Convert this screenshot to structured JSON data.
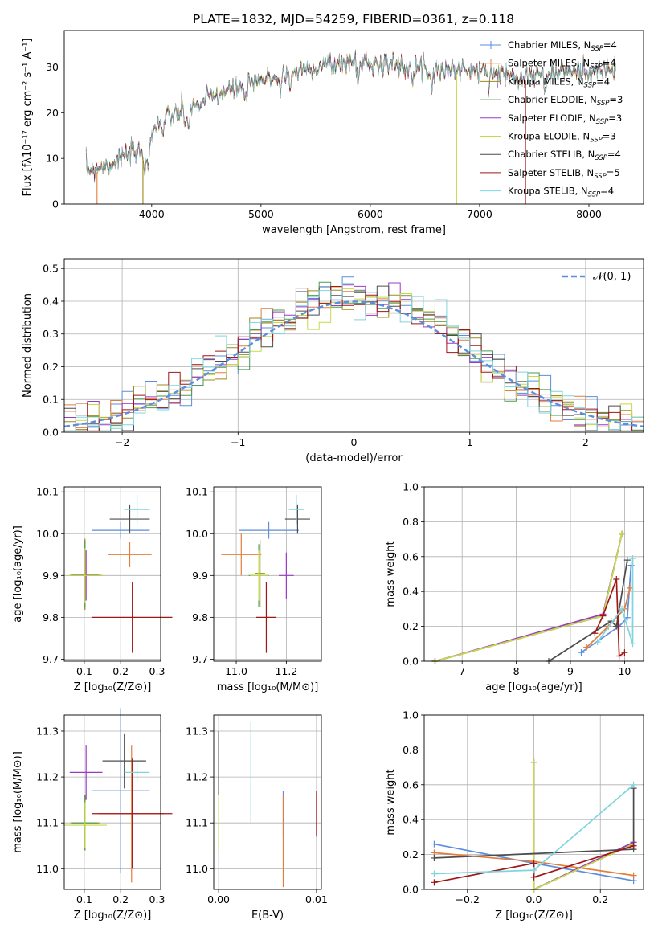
{
  "figure_title": "PLATE=1832, MJD=54259, FIBERID=0361, z=0.118",
  "models": [
    {
      "label": "Chabrier MILES, N",
      "nssp": "4",
      "color": "#5b8ede"
    },
    {
      "label": "Salpeter MILES, N",
      "nssp": "4",
      "color": "#e27d3b"
    },
    {
      "label": "Kroupa MILES, N",
      "nssp": "4",
      "color": "#9b8a1e"
    },
    {
      "label": "Chabrier ELODIE, N",
      "nssp": "3",
      "color": "#4e9a4e"
    },
    {
      "label": "Salpeter ELODIE, N",
      "nssp": "3",
      "color": "#9b3ac4"
    },
    {
      "label": "Kroupa ELODIE, N",
      "nssp": "3",
      "color": "#c8d84a"
    },
    {
      "label": "Chabrier STELIB, N",
      "nssp": "4",
      "color": "#4d4d4d"
    },
    {
      "label": "Salpeter STELIB, N",
      "nssp": "5",
      "color": "#a01616"
    },
    {
      "label": "Kroupa STELIB, N",
      "nssp": "4",
      "color": "#7fd4df"
    }
  ],
  "legend_ssp_subscript": "SSP",
  "chart_data": [
    {
      "id": "spectrum",
      "type": "line",
      "xlabel": "wavelength [Angstrom, rest frame]",
      "ylabel": "Flux [fλ10⁻¹⁷ erg cm⁻² s⁻¹ A⁻¹]",
      "xlim": [
        3200,
        8500
      ],
      "ylim": [
        0,
        38
      ],
      "xticks": [
        4000,
        5000,
        6000,
        7000,
        8000
      ],
      "yticks": [
        0,
        10,
        20,
        30
      ],
      "legend_position": "upper right",
      "continuum": {
        "x": [
          3400,
          3600,
          3800,
          3950,
          4050,
          4200,
          4400,
          4600,
          4800,
          5000,
          5200,
          5400,
          5600,
          5800,
          6000,
          6200,
          6400,
          6600,
          6800,
          7000,
          7200,
          7400,
          7600,
          7800,
          8000,
          8250
        ],
        "y": [
          7.5,
          8.5,
          11,
          11.5,
          18,
          19.5,
          21.5,
          24,
          25.5,
          27,
          28.5,
          29.5,
          30.5,
          31,
          31,
          30.5,
          30,
          29.5,
          29.5,
          29,
          28.5,
          28,
          28.5,
          29,
          29,
          29.5
        ]
      },
      "absorption_features": [
        3934,
        3969,
        4101,
        4304,
        4340,
        4861,
        5175,
        5270,
        5890,
        6563,
        7600
      ],
      "drop_lines": [
        {
          "series": 1,
          "x": 3500
        },
        {
          "series": 2,
          "x": 3920
        },
        {
          "series": 5,
          "x": 6790
        },
        {
          "series": 7,
          "x": 7420
        }
      ]
    },
    {
      "id": "residuals",
      "type": "step",
      "xlabel": "(data-model)/error",
      "ylabel": "Normed distribution",
      "xlim": [
        -2.5,
        2.5
      ],
      "ylim": [
        0,
        0.53
      ],
      "xticks": [
        -2,
        -1,
        0,
        1,
        2
      ],
      "xtick_labels": [
        "−2",
        "−1",
        "0",
        "1",
        "2"
      ],
      "yticks": [
        0.0,
        0.1,
        0.2,
        0.3,
        0.4,
        0.5
      ],
      "bin_width": 0.1,
      "gaussian_label": "𝒩(0, 1)",
      "gaussian_color": "#5b8ede",
      "legend_position": "upper right"
    },
    {
      "id": "age-Z",
      "type": "scatter",
      "xlabel": "Z [log₁₀(Z/Z⊙)]",
      "ylabel": "age  [log₁₀(age/yr)]",
      "xlim": [
        0.045,
        0.31
      ],
      "ylim": [
        9.695,
        10.112
      ],
      "xticks": [
        0.1,
        0.2,
        0.3
      ],
      "xtick_labels": [
        "0.1",
        "0.2",
        "0.3"
      ],
      "yticks": [
        9.7,
        9.8,
        9.9,
        10.0,
        10.1
      ],
      "ytick_labels": [
        "9.7",
        "9.8",
        "9.9",
        "10.0",
        "10.1"
      ],
      "points": [
        {
          "s": 0,
          "x": 0.2,
          "y": 10.008,
          "ex": 0.08,
          "ey": 0.02
        },
        {
          "s": 1,
          "x": 0.225,
          "y": 9.95,
          "ex": 0.06,
          "ey": 0.03
        },
        {
          "s": 2,
          "x": 0.102,
          "y": 9.903,
          "ex": 0.04,
          "ey": 0.085
        },
        {
          "s": 3,
          "x": 0.102,
          "y": 9.903,
          "ex": 0.035,
          "ey": 0.08
        },
        {
          "s": 4,
          "x": 0.105,
          "y": 9.9,
          "ex": 0.045,
          "ey": 0.06
        },
        {
          "s": 5,
          "x": 0.102,
          "y": 9.9,
          "ex": 0.05,
          "ey": 0.065
        },
        {
          "s": 6,
          "x": 0.225,
          "y": 10.035,
          "ex": 0.055,
          "ey": 0.035
        },
        {
          "s": 7,
          "x": 0.232,
          "y": 9.8,
          "ex": 0.11,
          "ey": 0.085
        },
        {
          "s": 8,
          "x": 0.245,
          "y": 10.058,
          "ex": 0.035,
          "ey": 0.035
        }
      ]
    },
    {
      "id": "age-mass",
      "type": "scatter",
      "xlabel": "mass [log₁₀(M/M⊙)]",
      "ylabel": "",
      "xlim": [
        10.91,
        11.34
      ],
      "ylim": [
        9.695,
        10.112
      ],
      "xticks": [
        11.0,
        11.2
      ],
      "xtick_labels": [
        "11.0",
        "11.2"
      ],
      "yticks": [
        9.7,
        9.8,
        9.9,
        10.0,
        10.1
      ],
      "ytick_labels": [
        "9.7",
        "9.8",
        "9.9",
        "10.0",
        "10.1"
      ],
      "points": [
        {
          "s": 0,
          "x": 11.13,
          "y": 10.008,
          "ex": 0.12,
          "ey": 0.02
        },
        {
          "s": 1,
          "x": 11.02,
          "y": 9.95,
          "ex": 0.08,
          "ey": 0.05
        },
        {
          "s": 2,
          "x": 11.095,
          "y": 9.905,
          "ex": 0.02,
          "ey": 0.08
        },
        {
          "s": 3,
          "x": 11.09,
          "y": 9.9,
          "ex": 0.04,
          "ey": 0.075
        },
        {
          "s": 4,
          "x": 11.2,
          "y": 9.9,
          "ex": 0.03,
          "ey": 0.055
        },
        {
          "s": 5,
          "x": 11.09,
          "y": 9.9,
          "ex": 0.035,
          "ey": 0.06
        },
        {
          "s": 6,
          "x": 11.245,
          "y": 10.035,
          "ex": 0.05,
          "ey": 0.035
        },
        {
          "s": 7,
          "x": 11.12,
          "y": 9.8,
          "ex": 0.04,
          "ey": 0.085
        },
        {
          "s": 8,
          "x": 11.24,
          "y": 10.058,
          "ex": 0.03,
          "ey": 0.035
        }
      ]
    },
    {
      "id": "weight-age",
      "type": "line",
      "xlabel": "age  [log₁₀(age/yr)]",
      "ylabel": "mass weight",
      "xlim": [
        6.3,
        10.35
      ],
      "ylim": [
        0,
        1.0
      ],
      "xticks": [
        7,
        8,
        9,
        10
      ],
      "xtick_labels": [
        "7",
        "8",
        "9",
        "10"
      ],
      "yticks": [
        0.0,
        0.2,
        0.4,
        0.6,
        0.8,
        1.0
      ],
      "ytick_labels": [
        "0.0",
        "0.2",
        "0.4",
        "0.6",
        "0.8",
        "1.0"
      ],
      "series": [
        {
          "s": 0,
          "x": [
            9.2,
            9.9,
            10.05,
            10.12
          ],
          "y": [
            0.05,
            0.2,
            0.25,
            0.55
          ]
        },
        {
          "s": 1,
          "x": [
            9.3,
            9.7,
            10.0,
            10.1
          ],
          "y": [
            0.08,
            0.2,
            0.3,
            0.42
          ]
        },
        {
          "s": 2,
          "x": [
            6.5,
            9.6,
            9.95
          ],
          "y": [
            0.0,
            0.26,
            0.73
          ]
        },
        {
          "s": 3,
          "x": [
            6.5,
            9.6,
            9.95
          ],
          "y": [
            0.0,
            0.26,
            0.73
          ]
        },
        {
          "s": 4,
          "x": [
            6.5,
            9.6,
            9.95
          ],
          "y": [
            0.0,
            0.27,
            0.73
          ]
        },
        {
          "s": 5,
          "x": [
            6.5,
            9.6,
            9.95
          ],
          "y": [
            0.0,
            0.26,
            0.73
          ]
        },
        {
          "s": 6,
          "x": [
            8.6,
            9.75,
            9.85,
            10.05
          ],
          "y": [
            0.0,
            0.23,
            0.2,
            0.58
          ]
        },
        {
          "s": 7,
          "x": [
            9.45,
            9.6,
            9.85,
            9.9,
            10.0
          ],
          "y": [
            0.16,
            0.26,
            0.47,
            0.03,
            0.05
          ]
        },
        {
          "s": 8,
          "x": [
            9.5,
            9.95,
            10.15,
            10.15
          ],
          "y": [
            0.11,
            0.3,
            0.1,
            0.59
          ]
        }
      ]
    },
    {
      "id": "mass-Z",
      "type": "scatter",
      "xlabel": "Z [log₁₀(Z/Z⊙)]",
      "ylabel": "mass [log₁₀(M/M⊙)]",
      "xlim": [
        0.045,
        0.31
      ],
      "ylim": [
        10.955,
        11.335
      ],
      "xticks": [
        0.1,
        0.2,
        0.3
      ],
      "xtick_labels": [
        "0.1",
        "0.2",
        "0.3"
      ],
      "yticks": [
        11.0,
        11.1,
        11.2,
        11.3
      ],
      "ytick_labels": [
        "11.0",
        "11.1",
        "11.2",
        "11.3"
      ],
      "points": [
        {
          "s": 0,
          "x": 0.2,
          "y": 11.17,
          "ex": 0.08,
          "ey": 0.18
        },
        {
          "s": 1,
          "x": 0.23,
          "y": 11.12,
          "ex": 0.09,
          "ey": 0.15
        },
        {
          "s": 2,
          "x": 0.102,
          "y": 11.1,
          "ex": 0.04,
          "ey": 0.06
        },
        {
          "s": 3,
          "x": 0.102,
          "y": 11.1,
          "ex": 0.035,
          "ey": 0.06
        },
        {
          "s": 4,
          "x": 0.105,
          "y": 11.21,
          "ex": 0.045,
          "ey": 0.06
        },
        {
          "s": 5,
          "x": 0.102,
          "y": 11.095,
          "ex": 0.06,
          "ey": 0.05
        },
        {
          "s": 6,
          "x": 0.21,
          "y": 11.235,
          "ex": 0.06,
          "ey": 0.06
        },
        {
          "s": 7,
          "x": 0.232,
          "y": 11.12,
          "ex": 0.11,
          "ey": 0.12
        },
        {
          "s": 8,
          "x": 0.245,
          "y": 11.21,
          "ex": 0.035,
          "ey": 0.02
        }
      ]
    },
    {
      "id": "mass-EBV",
      "type": "scatter",
      "xlabel": "E(B-V)",
      "ylabel": "",
      "xlim": [
        -0.0005,
        0.0105
      ],
      "ylim": [
        10.955,
        11.335
      ],
      "xticks": [
        0.0,
        0.01
      ],
      "xtick_labels": [
        "0.00",
        "0.01"
      ],
      "yticks": [
        11.0,
        11.1,
        11.2,
        11.3
      ],
      "ytick_labels": [
        "11.0",
        "11.1",
        "11.2",
        "11.3"
      ],
      "points": [
        {
          "s": 0,
          "x": 0.0066,
          "y": 11.12,
          "ex": 0,
          "ey": 0.05
        },
        {
          "s": 1,
          "x": 0.0066,
          "y": 11.06,
          "ex": 0,
          "ey": 0.1
        },
        {
          "s": 2,
          "x": 0.0,
          "y": 11.1,
          "ex": 0,
          "ey": 0.06
        },
        {
          "s": 3,
          "x": 0.0,
          "y": 11.1,
          "ex": 0,
          "ey": 0.06
        },
        {
          "s": 4,
          "x": 0.0,
          "y": 11.2,
          "ex": 0,
          "ey": 0.06
        },
        {
          "s": 5,
          "x": 0.0,
          "y": 11.1,
          "ex": 0,
          "ey": 0.06
        },
        {
          "s": 6,
          "x": 0.0,
          "y": 11.23,
          "ex": 0,
          "ey": 0.07
        },
        {
          "s": 7,
          "x": 0.01,
          "y": 11.12,
          "ex": 0,
          "ey": 0.05
        },
        {
          "s": 8,
          "x": 0.0033,
          "y": 11.21,
          "ex": 0,
          "ey": 0.11
        }
      ]
    },
    {
      "id": "weight-Z",
      "type": "line",
      "xlabel": "Z [log₁₀(Z/Z⊙)]",
      "ylabel": "mass weight",
      "xlim": [
        -0.33,
        0.33
      ],
      "ylim": [
        0,
        1.0
      ],
      "xticks": [
        -0.2,
        0.0,
        0.2
      ],
      "xtick_labels": [
        "−0.2",
        "0.0",
        "0.2"
      ],
      "yticks": [
        0.0,
        0.2,
        0.4,
        0.6,
        0.8,
        1.0
      ],
      "ytick_labels": [
        "0.0",
        "0.2",
        "0.4",
        "0.6",
        "0.8",
        "1.0"
      ],
      "series": [
        {
          "s": 0,
          "x": [
            -0.3,
            0.0,
            0.3
          ],
          "y": [
            0.26,
            0.15,
            0.05
          ]
        },
        {
          "s": 1,
          "x": [
            -0.3,
            0.0,
            0.3
          ],
          "y": [
            0.21,
            0.16,
            0.08
          ]
        },
        {
          "s": 2,
          "x": [
            0.0,
            0.0,
            0.3
          ],
          "y": [
            0.73,
            0.0,
            0.26
          ]
        },
        {
          "s": 3,
          "x": [
            0.0,
            0.0,
            0.3
          ],
          "y": [
            0.73,
            0.0,
            0.27
          ]
        },
        {
          "s": 4,
          "x": [
            0.0,
            0.0,
            0.3
          ],
          "y": [
            0.73,
            0.0,
            0.27
          ]
        },
        {
          "s": 5,
          "x": [
            0.0,
            0.0,
            0.3
          ],
          "y": [
            0.73,
            0.0,
            0.26
          ]
        },
        {
          "s": 6,
          "x": [
            -0.3,
            0.3,
            0.3
          ],
          "y": [
            0.18,
            0.23,
            0.58
          ]
        },
        {
          "s": 7,
          "x": [
            -0.3,
            0.0,
            0.0,
            0.3
          ],
          "y": [
            0.04,
            0.15,
            0.07,
            0.25
          ]
        },
        {
          "s": 8,
          "x": [
            -0.3,
            0.0,
            0.3
          ],
          "y": [
            0.09,
            0.11,
            0.6
          ]
        }
      ]
    }
  ]
}
